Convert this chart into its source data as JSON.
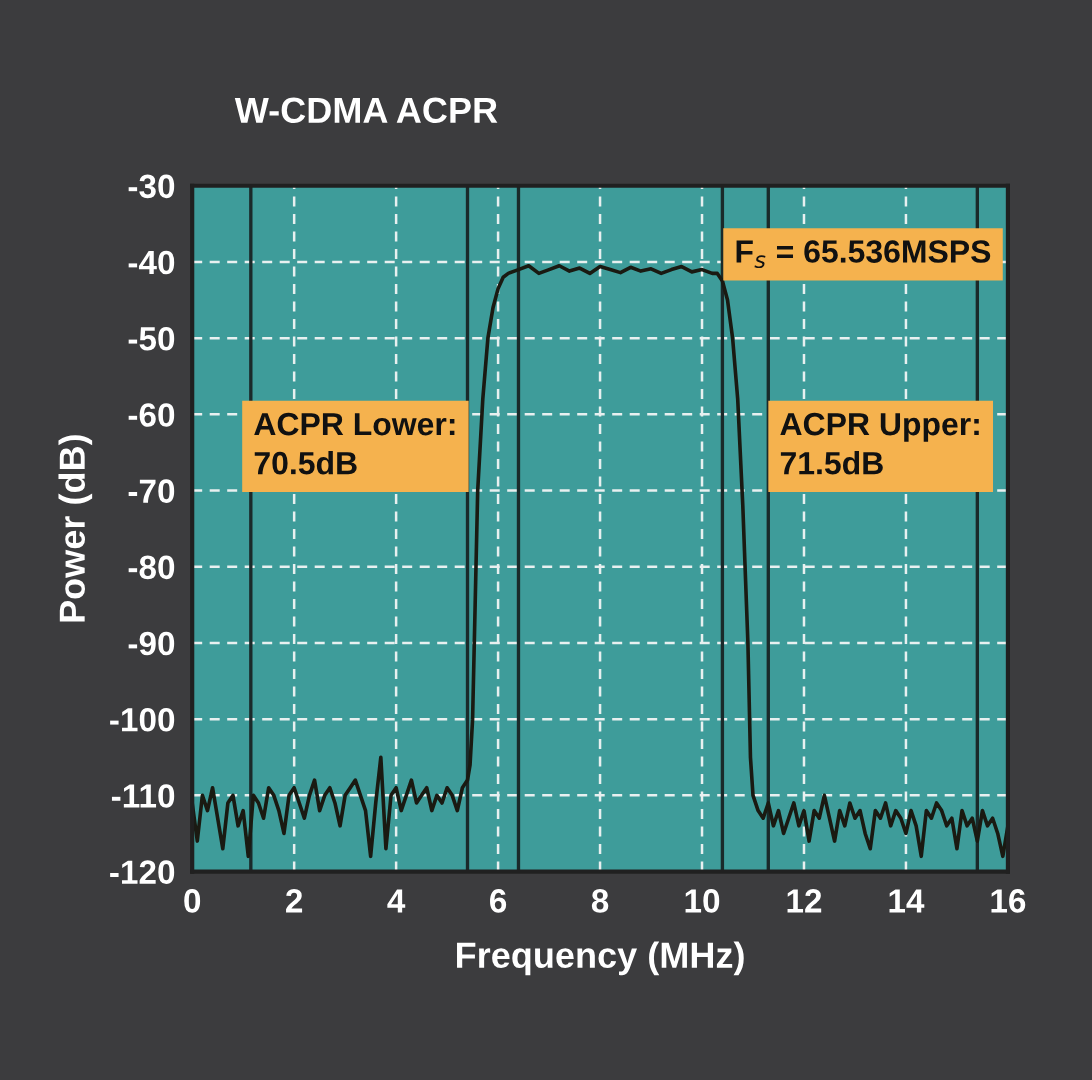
{
  "chart_data": {
    "type": "line",
    "title": "W-CDMA ACPR",
    "xlabel": "Frequency (MHz)",
    "ylabel": "Power (dB)",
    "xlim": [
      0,
      16
    ],
    "xticks": [
      0,
      2,
      4,
      6,
      8,
      10,
      12,
      14,
      16
    ],
    "ylim": [
      -120,
      -30
    ],
    "yticks": [
      -30,
      -40,
      -50,
      -60,
      -70,
      -80,
      -90,
      -100,
      -110,
      -120
    ],
    "grid": true,
    "line_style": "solid",
    "marker": "none",
    "annotations": [
      "ACPR Lower:\n70.5dB",
      "ACPR Upper:\n71.5dB",
      "F$_{s}$ = 65.536MSPS"
    ],
    "ref_lines": [
      {
        "axis": "x",
        "value": 1.15,
        "color": "#1a2a2a"
      },
      {
        "axis": "x",
        "value": 5.4,
        "color": "#1a2a2a"
      },
      {
        "axis": "x",
        "value": 6.4,
        "color": "#1a2a2a"
      },
      {
        "axis": "x",
        "value": 10.4,
        "color": "#1a2a2a"
      },
      {
        "axis": "x",
        "value": 11.3,
        "color": "#1a2a2a"
      },
      {
        "axis": "x",
        "value": 15.4,
        "color": "#1a2a2a"
      }
    ],
    "series": [
      {
        "color": "#1a1a12",
        "x": [
          0,
          0.1,
          0.2,
          0.3,
          0.4,
          0.5,
          0.6,
          0.7,
          0.8,
          0.9,
          1.0,
          1.1,
          1.2,
          1.3,
          1.4,
          1.5,
          1.6,
          1.7,
          1.8,
          1.9,
          2.0,
          2.1,
          2.2,
          2.3,
          2.4,
          2.5,
          2.6,
          2.7,
          2.8,
          2.9,
          3.0,
          3.1,
          3.2,
          3.3,
          3.4,
          3.5,
          3.6,
          3.7,
          3.8,
          3.9,
          4.0,
          4.1,
          4.2,
          4.3,
          4.4,
          4.5,
          4.6,
          4.7,
          4.8,
          4.9,
          5.0,
          5.1,
          5.2,
          5.3,
          5.4,
          5.45,
          5.5,
          5.55,
          5.6,
          5.7,
          5.8,
          5.9,
          6.0,
          6.1,
          6.2,
          6.4,
          6.6,
          6.8,
          7.0,
          7.2,
          7.4,
          7.6,
          7.8,
          8.0,
          8.2,
          8.4,
          8.6,
          8.8,
          9.0,
          9.2,
          9.4,
          9.6,
          9.8,
          10.0,
          10.2,
          10.3,
          10.4,
          10.5,
          10.6,
          10.7,
          10.8,
          10.9,
          10.95,
          11.0,
          11.1,
          11.2,
          11.3,
          11.4,
          11.5,
          11.6,
          11.7,
          11.8,
          11.9,
          12.0,
          12.1,
          12.2,
          12.3,
          12.4,
          12.5,
          12.6,
          12.7,
          12.8,
          12.9,
          13.0,
          13.1,
          13.2,
          13.3,
          13.4,
          13.5,
          13.6,
          13.7,
          13.8,
          13.9,
          14.0,
          14.1,
          14.2,
          14.3,
          14.4,
          14.5,
          14.6,
          14.7,
          14.8,
          14.9,
          15.0,
          15.1,
          15.2,
          15.3,
          15.4,
          15.5,
          15.6,
          15.7,
          15.8,
          15.9,
          16.0
        ],
        "values": [
          -111,
          -116,
          -110,
          -112,
          -109,
          -113,
          -117,
          -111,
          -110,
          -114,
          -112,
          -118,
          -110,
          -111,
          -113,
          -109,
          -110,
          -112,
          -115,
          -110,
          -109,
          -111,
          -113,
          -110,
          -108,
          -112,
          -110,
          -109,
          -111,
          -114,
          -110,
          -109,
          -108,
          -110,
          -112,
          -118,
          -111,
          -105,
          -117,
          -110,
          -109,
          -112,
          -110,
          -108,
          -111,
          -110,
          -109,
          -112,
          -110,
          -111,
          -109,
          -110,
          -112,
          -109,
          -108,
          -106,
          -100,
          -85,
          -70,
          -58,
          -50,
          -46,
          -43.5,
          -42,
          -41.5,
          -41,
          -40.5,
          -41.5,
          -41,
          -40.5,
          -41.2,
          -40.8,
          -41.5,
          -40.6,
          -41,
          -41.4,
          -40.7,
          -41.2,
          -40.9,
          -41.5,
          -41,
          -40.6,
          -41.3,
          -41,
          -41.5,
          -41.5,
          -42.5,
          -45,
          -50,
          -58,
          -72,
          -90,
          -105,
          -110,
          -112,
          -113,
          -111,
          -114,
          -112,
          -115,
          -113,
          -111,
          -114,
          -112,
          -116,
          -112,
          -113,
          -110,
          -113,
          -116,
          -112,
          -114,
          -111,
          -113,
          -112,
          -115,
          -117,
          -112,
          -113,
          -111,
          -114,
          -112,
          -113,
          -115,
          -112,
          -114,
          -118,
          -112,
          -113,
          -111,
          -112,
          -114,
          -113,
          -117,
          -112,
          -114,
          -113,
          -116,
          -112,
          -114,
          -113,
          -115,
          -118,
          -114
        ]
      }
    ]
  }
}
